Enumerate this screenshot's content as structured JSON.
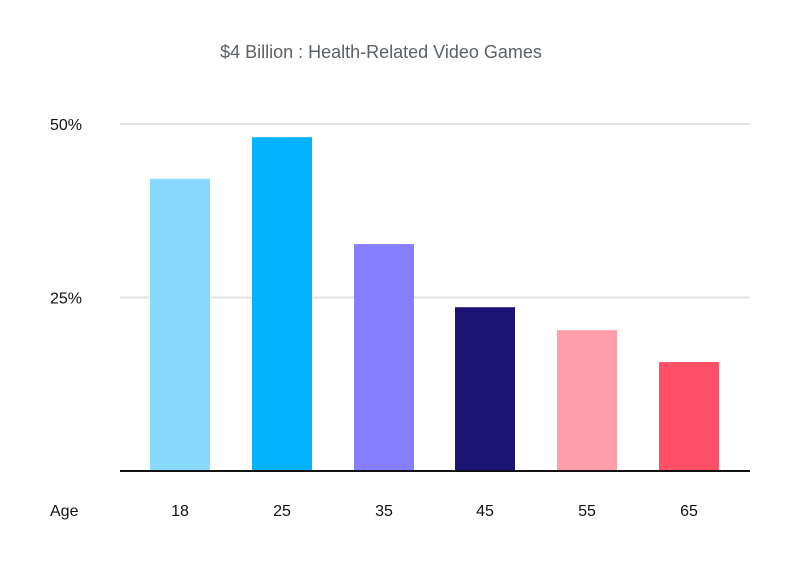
{
  "chart_data": {
    "type": "bar",
    "title": "$4 Billion : Health-Related Video Games",
    "xlabel": "Age",
    "ylabel": "",
    "categories": [
      "18",
      "25",
      "35",
      "45",
      "55",
      "65"
    ],
    "values": [
      42.1,
      48.1,
      32.7,
      23.6,
      20.3,
      15.7
    ],
    "colors": [
      "#87d9fd",
      "#03b3fe",
      "#857fff",
      "#1c1474",
      "#ff9ea9",
      "#ff5068"
    ],
    "ylim": [
      0,
      50
    ],
    "yticks": [
      {
        "value": 25,
        "label": "25%"
      },
      {
        "value": 50,
        "label": "50%"
      }
    ],
    "grid": true,
    "gridline_color": "#e2e2e2"
  }
}
